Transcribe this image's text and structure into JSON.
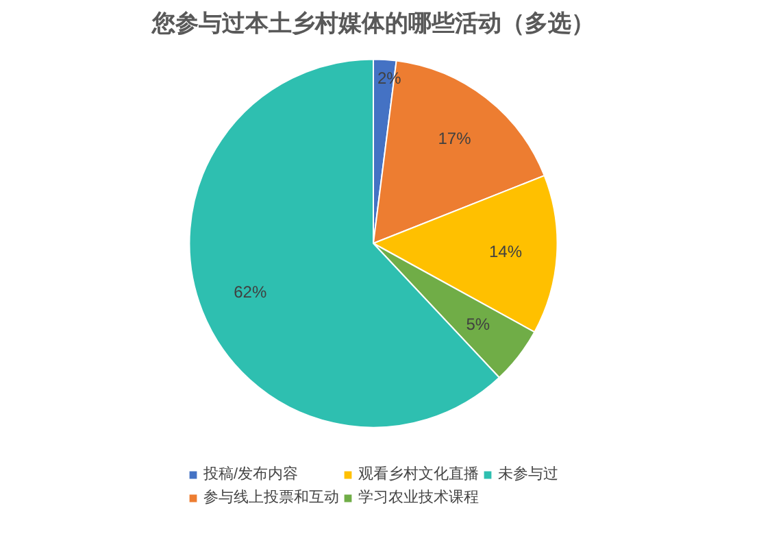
{
  "chart_data": {
    "type": "pie",
    "title": "您参与过本土乡村媒体的哪些活动（多选）",
    "categories": [
      "投稿/发布内容",
      "参与线上投票和互动",
      "观看乡村文化直播",
      "学习农业技术课程",
      "未参与过"
    ],
    "values": [
      2,
      17,
      14,
      5,
      62
    ],
    "colors": [
      "#4472c4",
      "#ed7d31",
      "#ffc000",
      "#70ad47",
      "#2ebfb0"
    ],
    "value_labels": [
      "2%",
      "17%",
      "14%",
      "5%",
      "62%"
    ],
    "legend": "bottom"
  }
}
